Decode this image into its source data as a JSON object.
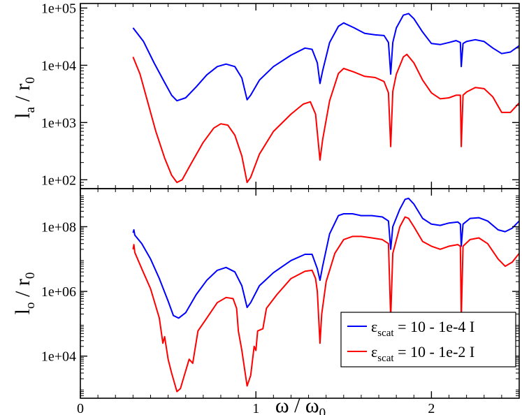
{
  "chart_data": [
    {
      "id": "top",
      "type": "line",
      "ylabel": "l",
      "ylabel_sub": "a",
      "ylabel_tail": " / r",
      "ylabel_tail_sub": "0",
      "yscale": "log",
      "ylim": [
        70,
        120000
      ],
      "yticks": [
        {
          "value": 100,
          "label": "1e+02"
        },
        {
          "value": 1000,
          "label": "1e+03"
        },
        {
          "value": 10000,
          "label": "1e+04"
        },
        {
          "value": 100000,
          "label": "1e+05"
        }
      ],
      "xlim": [
        0,
        2.5
      ],
      "series": [
        {
          "name": "blue",
          "color": "#0000ff",
          "points": [
            [
              0.3,
              45000
            ],
            [
              0.36,
              26000
            ],
            [
              0.42,
              11000
            ],
            [
              0.48,
              5000
            ],
            [
              0.52,
              3000
            ],
            [
              0.55,
              2400
            ],
            [
              0.6,
              2700
            ],
            [
              0.66,
              4200
            ],
            [
              0.72,
              6800
            ],
            [
              0.78,
              9500
            ],
            [
              0.83,
              10500
            ],
            [
              0.88,
              9500
            ],
            [
              0.92,
              6000
            ],
            [
              0.95,
              2500
            ],
            [
              0.97,
              3000
            ],
            [
              1.02,
              5500
            ],
            [
              1.1,
              9500
            ],
            [
              1.2,
              15000
            ],
            [
              1.28,
              20000
            ],
            [
              1.32,
              19000
            ],
            [
              1.35,
              11000
            ],
            [
              1.365,
              4800
            ],
            [
              1.38,
              8000
            ],
            [
              1.42,
              25000
            ],
            [
              1.47,
              48000
            ],
            [
              1.5,
              55000
            ],
            [
              1.56,
              45000
            ],
            [
              1.62,
              36000
            ],
            [
              1.68,
              34000
            ],
            [
              1.73,
              33000
            ],
            [
              1.755,
              25000
            ],
            [
              1.768,
              7000
            ],
            [
              1.78,
              25000
            ],
            [
              1.8,
              45000
            ],
            [
              1.84,
              75000
            ],
            [
              1.87,
              80000
            ],
            [
              1.9,
              65000
            ],
            [
              1.95,
              38000
            ],
            [
              2.0,
              24000
            ],
            [
              2.05,
              23000
            ],
            [
              2.1,
              25000
            ],
            [
              2.14,
              27000
            ],
            [
              2.165,
              25000
            ],
            [
              2.17,
              9500
            ],
            [
              2.18,
              24000
            ],
            [
              2.2,
              26000
            ],
            [
              2.25,
              28000
            ],
            [
              2.3,
              26000
            ],
            [
              2.35,
              20000
            ],
            [
              2.4,
              16000
            ],
            [
              2.45,
              17000
            ],
            [
              2.5,
              22000
            ]
          ]
        },
        {
          "name": "red",
          "color": "#ff0000",
          "points": [
            [
              0.3,
              14000
            ],
            [
              0.34,
              7000
            ],
            [
              0.38,
              2500
            ],
            [
              0.43,
              700
            ],
            [
              0.48,
              240
            ],
            [
              0.52,
              120
            ],
            [
              0.55,
              90
            ],
            [
              0.58,
              100
            ],
            [
              0.63,
              190
            ],
            [
              0.7,
              450
            ],
            [
              0.76,
              800
            ],
            [
              0.8,
              950
            ],
            [
              0.84,
              900
            ],
            [
              0.88,
              600
            ],
            [
              0.92,
              260
            ],
            [
              0.95,
              90
            ],
            [
              0.97,
              110
            ],
            [
              1.02,
              280
            ],
            [
              1.1,
              700
            ],
            [
              1.2,
              1400
            ],
            [
              1.27,
              2100
            ],
            [
              1.31,
              2300
            ],
            [
              1.34,
              1400
            ],
            [
              1.365,
              220
            ],
            [
              1.38,
              500
            ],
            [
              1.42,
              2400
            ],
            [
              1.47,
              7200
            ],
            [
              1.5,
              8800
            ],
            [
              1.56,
              7600
            ],
            [
              1.62,
              6400
            ],
            [
              1.68,
              6100
            ],
            [
              1.73,
              5200
            ],
            [
              1.755,
              3300
            ],
            [
              1.768,
              380
            ],
            [
              1.78,
              3500
            ],
            [
              1.8,
              7000
            ],
            [
              1.84,
              14000
            ],
            [
              1.86,
              15500
            ],
            [
              1.9,
              11000
            ],
            [
              1.95,
              5500
            ],
            [
              2.0,
              3300
            ],
            [
              2.05,
              2600
            ],
            [
              2.1,
              2700
            ],
            [
              2.14,
              3000
            ],
            [
              2.165,
              3000
            ],
            [
              2.17,
              380
            ],
            [
              2.18,
              3000
            ],
            [
              2.2,
              3400
            ],
            [
              2.25,
              4100
            ],
            [
              2.3,
              3900
            ],
            [
              2.35,
              2800
            ],
            [
              2.4,
              1500
            ],
            [
              2.45,
              1500
            ],
            [
              2.5,
              2200
            ]
          ]
        }
      ]
    },
    {
      "id": "bottom",
      "type": "line",
      "ylabel": "l",
      "ylabel_sub": "o",
      "ylabel_tail": " / r",
      "ylabel_tail_sub": "0",
      "yscale": "log",
      "ylim": [
        500,
        1500000000
      ],
      "yticks": [
        {
          "value": 10000,
          "label": "1e+04"
        },
        {
          "value": 1000000,
          "label": "1e+06"
        },
        {
          "value": 100000000,
          "label": "1e+08"
        }
      ],
      "xlim": [
        0,
        2.5
      ],
      "xlabel": "ω / ω",
      "xlabel_sub": "0",
      "xticks": [
        {
          "value": 0,
          "label": "0"
        },
        {
          "value": 1,
          "label": "1"
        },
        {
          "value": 2,
          "label": "2"
        }
      ],
      "series": [
        {
          "name": "blue",
          "color": "#0000ff",
          "points": [
            [
              0.3,
              65000000
            ],
            [
              0.305,
              80000000
            ],
            [
              0.31,
              55000000
            ],
            [
              0.35,
              30000000
            ],
            [
              0.4,
              10000000
            ],
            [
              0.45,
              2500000
            ],
            [
              0.5,
              500000
            ],
            [
              0.53,
              180000
            ],
            [
              0.56,
              150000
            ],
            [
              0.6,
              220000
            ],
            [
              0.66,
              800000
            ],
            [
              0.72,
              2200000
            ],
            [
              0.78,
              4500000
            ],
            [
              0.83,
              5500000
            ],
            [
              0.88,
              4000000
            ],
            [
              0.92,
              1500000
            ],
            [
              0.95,
              320000
            ],
            [
              0.97,
              450000
            ],
            [
              1.02,
              1500000
            ],
            [
              1.1,
              3800000
            ],
            [
              1.2,
              9000000
            ],
            [
              1.28,
              14000000
            ],
            [
              1.32,
              14000000
            ],
            [
              1.35,
              5000000
            ],
            [
              1.365,
              2200000
            ],
            [
              1.38,
              6000000
            ],
            [
              1.42,
              60000000
            ],
            [
              1.47,
              220000000
            ],
            [
              1.5,
              250000000
            ],
            [
              1.55,
              250000000
            ],
            [
              1.6,
              220000000
            ],
            [
              1.66,
              220000000
            ],
            [
              1.72,
              200000000
            ],
            [
              1.755,
              150000000
            ],
            [
              1.768,
              20000000
            ],
            [
              1.78,
              100000000
            ],
            [
              1.82,
              350000000
            ],
            [
              1.85,
              700000000
            ],
            [
              1.87,
              750000000
            ],
            [
              1.9,
              500000000
            ],
            [
              1.95,
              180000000
            ],
            [
              2.0,
              120000000
            ],
            [
              2.05,
              110000000
            ],
            [
              2.1,
              130000000
            ],
            [
              2.15,
              140000000
            ],
            [
              2.165,
              120000000
            ],
            [
              2.17,
              25000000
            ],
            [
              2.18,
              120000000
            ],
            [
              2.22,
              180000000
            ],
            [
              2.27,
              190000000
            ],
            [
              2.32,
              150000000
            ],
            [
              2.38,
              80000000
            ],
            [
              2.42,
              70000000
            ],
            [
              2.46,
              90000000
            ],
            [
              2.5,
              150000000
            ]
          ]
        },
        {
          "name": "red",
          "color": "#ff0000",
          "points": [
            [
              0.3,
              20000000
            ],
            [
              0.305,
              28000000
            ],
            [
              0.31,
              16000000
            ],
            [
              0.35,
              5000000
            ],
            [
              0.4,
              1200000
            ],
            [
              0.45,
              150000
            ],
            [
              0.47,
              25000
            ],
            [
              0.48,
              40000
            ],
            [
              0.5,
              8000
            ],
            [
              0.52,
              3000
            ],
            [
              0.55,
              800
            ],
            [
              0.57,
              1000
            ],
            [
              0.6,
              3500
            ],
            [
              0.62,
              8000
            ],
            [
              0.64,
              6000
            ],
            [
              0.67,
              60000
            ],
            [
              0.72,
              150000
            ],
            [
              0.78,
              450000
            ],
            [
              0.83,
              650000
            ],
            [
              0.87,
              600000
            ],
            [
              0.89,
              300000
            ],
            [
              0.9,
              60000
            ],
            [
              0.92,
              15000
            ],
            [
              0.95,
              1200
            ],
            [
              0.97,
              2500
            ],
            [
              0.99,
              20000
            ],
            [
              1.0,
              15000
            ],
            [
              1.01,
              60000
            ],
            [
              1.04,
              70000
            ],
            [
              1.06,
              300000
            ],
            [
              1.12,
              800000
            ],
            [
              1.2,
              2500000
            ],
            [
              1.28,
              4200000
            ],
            [
              1.32,
              4500000
            ],
            [
              1.34,
              2500000
            ],
            [
              1.35,
              1000000
            ],
            [
              1.365,
              25000
            ],
            [
              1.375,
              200000
            ],
            [
              1.4,
              2000000
            ],
            [
              1.45,
              15000000
            ],
            [
              1.5,
              40000000
            ],
            [
              1.55,
              50000000
            ],
            [
              1.6,
              50000000
            ],
            [
              1.66,
              45000000
            ],
            [
              1.72,
              40000000
            ],
            [
              1.755,
              30000000
            ],
            [
              1.768,
              150000
            ],
            [
              1.78,
              15000000
            ],
            [
              1.82,
              100000000
            ],
            [
              1.85,
              200000000
            ],
            [
              1.87,
              180000000
            ],
            [
              1.9,
              100000000
            ],
            [
              1.95,
              35000000
            ],
            [
              2.0,
              25000000
            ],
            [
              2.05,
              20000000
            ],
            [
              2.1,
              25000000
            ],
            [
              2.15,
              28000000
            ],
            [
              2.165,
              25000000
            ],
            [
              2.17,
              150000
            ],
            [
              2.18,
              25000000
            ],
            [
              2.22,
              40000000
            ],
            [
              2.27,
              45000000
            ],
            [
              2.32,
              30000000
            ],
            [
              2.38,
              10000000
            ],
            [
              2.42,
              6000000
            ],
            [
              2.46,
              8000000
            ],
            [
              2.5,
              15000000
            ]
          ]
        }
      ]
    }
  ],
  "legend": {
    "placement": "bottom-right of lower panel",
    "entries": [
      {
        "color": "#0000ff",
        "symbol": "ε",
        "sub": "scat",
        "text": " = 10 - 1e-4 I"
      },
      {
        "color": "#ff0000",
        "symbol": "ε",
        "sub": "scat",
        "text": " = 10 - 1e-2 I"
      }
    ]
  }
}
